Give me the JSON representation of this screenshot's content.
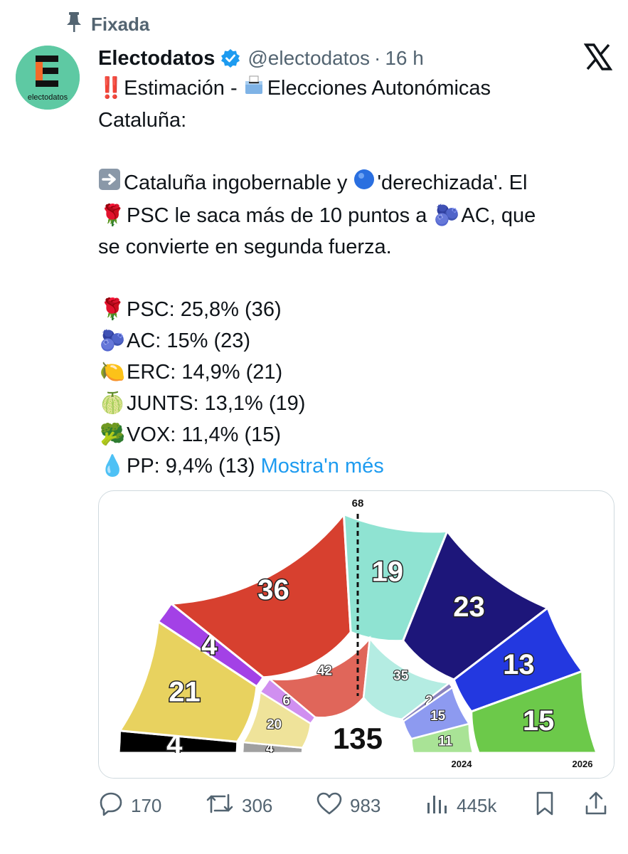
{
  "pinned": {
    "label": "Fixada"
  },
  "author": {
    "name": "Electodatos",
    "handle": "@electodatos",
    "time": "16 h",
    "avatar_text": "electodatos"
  },
  "tweet": {
    "line1": "Estimación - ",
    "line1b": "Elecciones Autonómicas",
    "line2": "Cataluña:",
    "p2_line1a": "Cataluña ingobernable y ",
    "p2_line1b": "'derechizada'. El",
    "p2_line2a": "PSC le saca más de 10 puntos a ",
    "p2_line2b": "AC, que",
    "p2_line3": "se convierte en segunda fuerza.",
    "results": [
      {
        "emoji": "🌹",
        "text": "PSC: 25,8% (36)"
      },
      {
        "emoji": "🫐",
        "text": "AC: 15% (23)"
      },
      {
        "emoji": "🍋",
        "text": "ERC: 14,9% (21)"
      },
      {
        "emoji": "🍈",
        "text": "JUNTS: 13,1% (19)"
      },
      {
        "emoji": "🥦",
        "text": "VOX: 11,4% (15)"
      },
      {
        "emoji": "💧",
        "text": "PP: 9,4% (13)"
      }
    ],
    "show_more": "Mostra'n més"
  },
  "chart_data": {
    "type": "parliament",
    "total": "135",
    "majority": "68",
    "outer": {
      "label": "2026",
      "seats": [
        {
          "value": 4,
          "color": "#000000"
        },
        {
          "value": 21,
          "color": "#e8d25f"
        },
        {
          "value": 4,
          "color": "#a341e6"
        },
        {
          "value": 36,
          "color": "#d7402f"
        },
        {
          "value": 19,
          "color": "#8fe3d2"
        },
        {
          "value": 23,
          "color": "#1d167a"
        },
        {
          "value": 13,
          "color": "#2338e0"
        },
        {
          "value": 15,
          "color": "#6cc94a"
        }
      ]
    },
    "inner": {
      "label": "2024",
      "seats": [
        {
          "value": 4,
          "color": "#a0a0a0"
        },
        {
          "value": 20,
          "color": "#efe39a"
        },
        {
          "value": 6,
          "color": "#d08ff0"
        },
        {
          "value": 42,
          "color": "#e0665a"
        },
        {
          "value": 35,
          "color": "#b4ece2"
        },
        {
          "value": 2,
          "color": "#8a84bf"
        },
        {
          "value": 15,
          "color": "#8d9af0"
        },
        {
          "value": 11,
          "color": "#a9e396"
        }
      ]
    }
  },
  "actions": {
    "replies": "170",
    "reposts": "306",
    "likes": "983",
    "views": "445k"
  },
  "icons": [
    "pin-icon",
    "verified-icon",
    "x-logo-icon",
    "reply-icon",
    "repost-icon",
    "like-icon",
    "views-icon",
    "bookmark-icon",
    "share-icon"
  ]
}
